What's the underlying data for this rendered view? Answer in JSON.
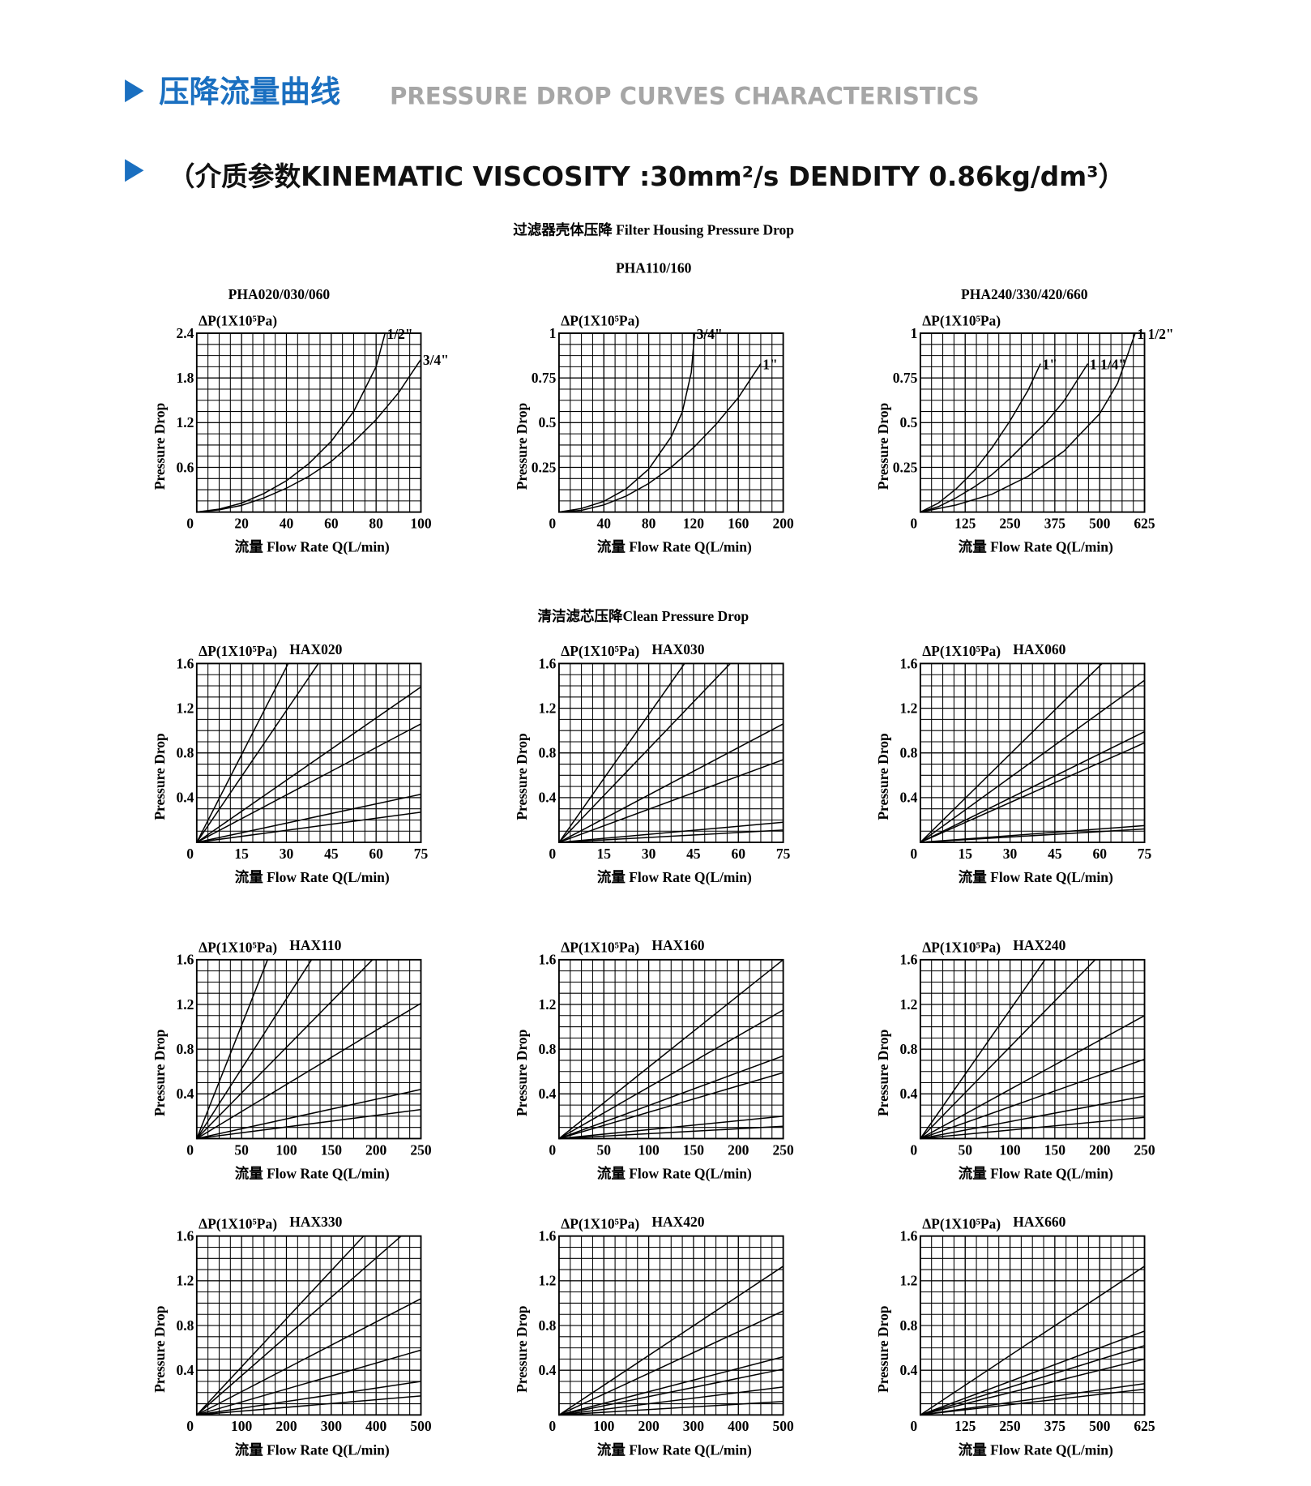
{
  "header": {
    "title_cn": "压降流量曲线",
    "title_en": "PRESSURE DROP CURVES  CHARACTERISTICS",
    "subtitle": "（介质参数KINEMATIC VISCOSITY :30mm²/s DENDITY 0.86kg/dm³）"
  },
  "sections": [
    "过滤器壳体压降 Filter Housing Pressure Drop",
    "清洁滤芯压降Clean Pressure Drop"
  ],
  "chart_data": [
    {
      "type": "line",
      "title": "PHA020/030/060",
      "y_label": "ΔP(1X10⁵Pa)",
      "y_axis_title": "Pressure Drop",
      "x_label": "流量 Flow Rate  Q(L/min)",
      "color": "#000000",
      "xlim": [
        0,
        100
      ],
      "ylim": [
        0,
        2.4
      ],
      "xticks": [
        0,
        20,
        40,
        60,
        80,
        100
      ],
      "yticks": [
        0.6,
        1.2,
        1.8,
        2.4
      ],
      "series": [
        {
          "name": "1/2\"",
          "x": [
            0,
            10,
            20,
            30,
            40,
            50,
            60,
            70,
            80,
            84
          ],
          "values": [
            0,
            0.04,
            0.12,
            0.25,
            0.42,
            0.65,
            0.95,
            1.35,
            1.95,
            2.4
          ]
        },
        {
          "name": "3/4\"",
          "x": [
            0,
            10,
            20,
            30,
            40,
            50,
            60,
            70,
            80,
            90,
            100
          ],
          "values": [
            0,
            0.03,
            0.09,
            0.19,
            0.32,
            0.48,
            0.68,
            0.94,
            1.24,
            1.6,
            2.05
          ]
        }
      ]
    },
    {
      "type": "line",
      "title": "PHA110/160",
      "y_label": "ΔP(1X10⁵Pa)",
      "y_axis_title": "Pressure Drop",
      "x_label": "流量 Flow Rate  Q(L/min)",
      "color": "#000000",
      "xlim": [
        0,
        200
      ],
      "ylim": [
        0,
        1
      ],
      "xticks": [
        0,
        40,
        80,
        120,
        160,
        200
      ],
      "yticks": [
        0.25,
        0.5,
        0.75,
        1
      ],
      "series": [
        {
          "name": "3/4\"",
          "x": [
            0,
            20,
            40,
            60,
            80,
            100,
            110,
            118,
            121
          ],
          "values": [
            0,
            0.02,
            0.06,
            0.13,
            0.24,
            0.42,
            0.56,
            0.78,
            1
          ]
        },
        {
          "name": "1\"",
          "x": [
            0,
            20,
            40,
            60,
            80,
            100,
            120,
            140,
            160,
            180
          ],
          "values": [
            0,
            0.01,
            0.04,
            0.09,
            0.16,
            0.25,
            0.36,
            0.49,
            0.64,
            0.83
          ]
        }
      ]
    },
    {
      "type": "line",
      "title": "PHA240/330/420/660",
      "y_label": "ΔP(1X10⁵Pa)",
      "y_axis_title": "Pressure Drop",
      "x_label": "流量 Flow Rate  Q(L/min)",
      "color": "#000000",
      "xlim": [
        0,
        625
      ],
      "ylim": [
        0,
        1
      ],
      "xticks": [
        0,
        125,
        250,
        375,
        500,
        625
      ],
      "yticks": [
        0.25,
        0.5,
        0.75,
        1
      ],
      "series": [
        {
          "name": "1\"",
          "x": [
            0,
            50,
            100,
            150,
            200,
            250,
            300,
            335
          ],
          "values": [
            0,
            0.05,
            0.13,
            0.23,
            0.36,
            0.51,
            0.68,
            0.83
          ]
        },
        {
          "name": "1 1/4\"",
          "x": [
            0,
            50,
            100,
            150,
            200,
            250,
            300,
            350,
            400,
            467
          ],
          "values": [
            0,
            0.03,
            0.08,
            0.14,
            0.21,
            0.3,
            0.4,
            0.5,
            0.62,
            0.83
          ]
        },
        {
          "name": "1 1/2\"",
          "x": [
            0,
            100,
            200,
            300,
            400,
            500,
            550,
            599
          ],
          "values": [
            0,
            0.04,
            0.1,
            0.2,
            0.34,
            0.55,
            0.72,
            1
          ]
        }
      ]
    },
    {
      "type": "line",
      "title": "HAX020",
      "y_label": "ΔP(1X10⁵Pa)",
      "y_axis_title": "Pressure Drop",
      "x_label": "流量 Flow Rate  Q(L/min)",
      "color": "#000000",
      "xlim": [
        0,
        75
      ],
      "ylim": [
        0,
        1.6
      ],
      "xticks": [
        0,
        15,
        30,
        45,
        60,
        75
      ],
      "yticks": [
        0.4,
        0.8,
        1.2,
        1.6
      ],
      "series": [
        {
          "x": [
            0,
            30.6
          ],
          "values": [
            0,
            1.6
          ]
        },
        {
          "x": [
            0,
            40.7
          ],
          "values": [
            0,
            1.6
          ]
        },
        {
          "x": [
            0,
            75
          ],
          "values": [
            0,
            1.39
          ]
        },
        {
          "x": [
            0,
            75
          ],
          "values": [
            0,
            1.06
          ]
        },
        {
          "x": [
            0,
            75
          ],
          "values": [
            0,
            0.43
          ]
        },
        {
          "x": [
            0,
            75
          ],
          "values": [
            0,
            0.27
          ]
        }
      ]
    },
    {
      "type": "line",
      "title": "HAX030",
      "y_label": "ΔP(1X10⁵Pa)",
      "y_axis_title": "Pressure Drop",
      "x_label": "流量 Flow Rate  Q(L/min)",
      "color": "#000000",
      "xlim": [
        0,
        75
      ],
      "ylim": [
        0,
        1.6
      ],
      "xticks": [
        0,
        15,
        30,
        45,
        60,
        75
      ],
      "yticks": [
        0.4,
        0.8,
        1.2,
        1.6
      ],
      "series": [
        {
          "x": [
            0,
            42
          ],
          "values": [
            0,
            1.6
          ]
        },
        {
          "x": [
            0,
            57.3
          ],
          "values": [
            0,
            1.6
          ]
        },
        {
          "x": [
            0,
            75
          ],
          "values": [
            0,
            1.06
          ]
        },
        {
          "x": [
            0,
            75
          ],
          "values": [
            0,
            0.74
          ]
        },
        {
          "x": [
            0,
            75
          ],
          "values": [
            0,
            0.18
          ]
        },
        {
          "x": [
            0,
            75
          ],
          "values": [
            0,
            0.11
          ]
        }
      ]
    },
    {
      "type": "line",
      "title": "HAX060",
      "y_label": "ΔP(1X10⁵Pa)",
      "y_axis_title": "Pressure Drop",
      "x_label": "流量 Flow Rate  Q(L/min)",
      "color": "#000000",
      "xlim": [
        0,
        75
      ],
      "ylim": [
        0,
        1.6
      ],
      "xticks": [
        0,
        15,
        30,
        45,
        60,
        75
      ],
      "yticks": [
        0.4,
        0.8,
        1.2,
        1.6
      ],
      "series": [
        {
          "x": [
            0,
            60.8
          ],
          "values": [
            0,
            1.6
          ]
        },
        {
          "x": [
            0,
            75
          ],
          "values": [
            0,
            1.45
          ]
        },
        {
          "x": [
            0,
            75
          ],
          "values": [
            0,
            0.99
          ]
        },
        {
          "x": [
            0,
            75
          ],
          "values": [
            0,
            0.89
          ]
        },
        {
          "x": [
            0,
            75
          ],
          "values": [
            0,
            0.15
          ]
        },
        {
          "x": [
            0,
            75
          ],
          "values": [
            0,
            0.12
          ]
        }
      ]
    },
    {
      "type": "line",
      "title": "HAX110",
      "y_label": "ΔP(1X10⁵Pa)",
      "y_axis_title": "Pressure Drop",
      "x_label": "流量 Flow Rate  Q(L/min)",
      "color": "#000000",
      "xlim": [
        0,
        250
      ],
      "ylim": [
        0,
        1.6
      ],
      "xticks": [
        0,
        50,
        100,
        150,
        200,
        250
      ],
      "yticks": [
        0.4,
        0.8,
        1.2,
        1.6
      ],
      "series": [
        {
          "x": [
            0,
            79
          ],
          "values": [
            0,
            1.6
          ]
        },
        {
          "x": [
            0,
            128
          ],
          "values": [
            0,
            1.6
          ]
        },
        {
          "x": [
            0,
            196
          ],
          "values": [
            0,
            1.6
          ]
        },
        {
          "x": [
            0,
            250
          ],
          "values": [
            0,
            1.21
          ]
        },
        {
          "x": [
            0,
            250
          ],
          "values": [
            0,
            0.44
          ]
        },
        {
          "x": [
            0,
            250
          ],
          "values": [
            0,
            0.26
          ]
        }
      ]
    },
    {
      "type": "line",
      "title": "HAX160",
      "y_label": "ΔP(1X10⁵Pa)",
      "y_axis_title": "Pressure Drop",
      "x_label": "流量 Flow Rate  Q(L/min)",
      "color": "#000000",
      "xlim": [
        0,
        250
      ],
      "ylim": [
        0,
        1.6
      ],
      "xticks": [
        0,
        50,
        100,
        150,
        200,
        250
      ],
      "yticks": [
        0.4,
        0.8,
        1.2,
        1.6
      ],
      "series": [
        {
          "x": [
            0,
            250
          ],
          "values": [
            0,
            1.6
          ]
        },
        {
          "x": [
            0,
            250
          ],
          "values": [
            0,
            1.15
          ]
        },
        {
          "x": [
            0,
            250
          ],
          "values": [
            0,
            0.74
          ]
        },
        {
          "x": [
            0,
            250
          ],
          "values": [
            0,
            0.59
          ]
        },
        {
          "x": [
            0,
            250
          ],
          "values": [
            0,
            0.2
          ]
        },
        {
          "x": [
            0,
            250
          ],
          "values": [
            0,
            0.11
          ]
        }
      ]
    },
    {
      "type": "line",
      "title": "HAX240",
      "y_label": "ΔP(1X10⁵Pa)",
      "y_axis_title": "Pressure Drop",
      "x_label": "流量 Flow Rate  Q(L/min)",
      "color": "#000000",
      "xlim": [
        0,
        250
      ],
      "ylim": [
        0,
        1.6
      ],
      "xticks": [
        0,
        50,
        100,
        150,
        200,
        250
      ],
      "yticks": [
        0.4,
        0.8,
        1.2,
        1.6
      ],
      "series": [
        {
          "x": [
            0,
            139
          ],
          "values": [
            0,
            1.6
          ]
        },
        {
          "x": [
            0,
            195
          ],
          "values": [
            0,
            1.6
          ]
        },
        {
          "x": [
            0,
            250
          ],
          "values": [
            0,
            1.1
          ]
        },
        {
          "x": [
            0,
            250
          ],
          "values": [
            0,
            0.71
          ]
        },
        {
          "x": [
            0,
            250
          ],
          "values": [
            0,
            0.38
          ]
        },
        {
          "x": [
            0,
            250
          ],
          "values": [
            0,
            0.19
          ]
        }
      ]
    },
    {
      "type": "line",
      "title": "HAX330",
      "y_label": "ΔP(1X10⁵Pa)",
      "y_axis_title": "Pressure Drop",
      "x_label": "流量 Flow Rate  Q(L/min)",
      "color": "#000000",
      "xlim": [
        0,
        500
      ],
      "ylim": [
        0,
        1.6
      ],
      "xticks": [
        0,
        100,
        200,
        300,
        400,
        500
      ],
      "yticks": [
        0.4,
        0.8,
        1.2,
        1.6
      ],
      "series": [
        {
          "x": [
            0,
            372
          ],
          "values": [
            0,
            1.6
          ]
        },
        {
          "x": [
            0,
            456
          ],
          "values": [
            0,
            1.6
          ]
        },
        {
          "x": [
            0,
            500
          ],
          "values": [
            0,
            1.04
          ]
        },
        {
          "x": [
            0,
            500
          ],
          "values": [
            0,
            0.58
          ]
        },
        {
          "x": [
            0,
            500
          ],
          "values": [
            0,
            0.3
          ]
        },
        {
          "x": [
            0,
            500
          ],
          "values": [
            0,
            0.17
          ]
        }
      ]
    },
    {
      "type": "line",
      "title": "HAX420",
      "y_label": "ΔP(1X10⁵Pa)",
      "y_axis_title": "Pressure Drop",
      "x_label": "流量 Flow Rate  Q(L/min)",
      "color": "#000000",
      "xlim": [
        0,
        500
      ],
      "ylim": [
        0,
        1.6
      ],
      "xticks": [
        0,
        100,
        200,
        300,
        400,
        500
      ],
      "yticks": [
        0.4,
        0.8,
        1.2,
        1.6
      ],
      "series": [
        {
          "x": [
            0,
            500
          ],
          "values": [
            0,
            1.33
          ]
        },
        {
          "x": [
            0,
            500
          ],
          "values": [
            0,
            0.93
          ]
        },
        {
          "x": [
            0,
            500
          ],
          "values": [
            0,
            0.52
          ]
        },
        {
          "x": [
            0,
            500
          ],
          "values": [
            0,
            0.41
          ]
        },
        {
          "x": [
            0,
            500
          ],
          "values": [
            0,
            0.25
          ]
        },
        {
          "x": [
            0,
            500
          ],
          "values": [
            0,
            0.12
          ]
        }
      ]
    },
    {
      "type": "line",
      "title": "HAX660",
      "y_label": "ΔP(1X10⁵Pa)",
      "y_axis_title": "Pressure Drop",
      "x_label": "流量 Flow Rate  Q(L/min)",
      "color": "#000000",
      "xlim": [
        0,
        625
      ],
      "ylim": [
        0,
        1.6
      ],
      "xticks": [
        0,
        125,
        250,
        375,
        500,
        625
      ],
      "yticks": [
        0.4,
        0.8,
        1.2,
        1.6
      ],
      "series": [
        {
          "x": [
            0,
            625
          ],
          "values": [
            0,
            1.33
          ]
        },
        {
          "x": [
            0,
            625
          ],
          "values": [
            0,
            0.75
          ]
        },
        {
          "x": [
            0,
            625
          ],
          "values": [
            0,
            0.62
          ]
        },
        {
          "x": [
            0,
            625
          ],
          "values": [
            0,
            0.5
          ]
        },
        {
          "x": [
            0,
            625
          ],
          "values": [
            0,
            0.28
          ]
        },
        {
          "x": [
            0,
            625
          ],
          "values": [
            0,
            0.23
          ]
        }
      ]
    }
  ]
}
